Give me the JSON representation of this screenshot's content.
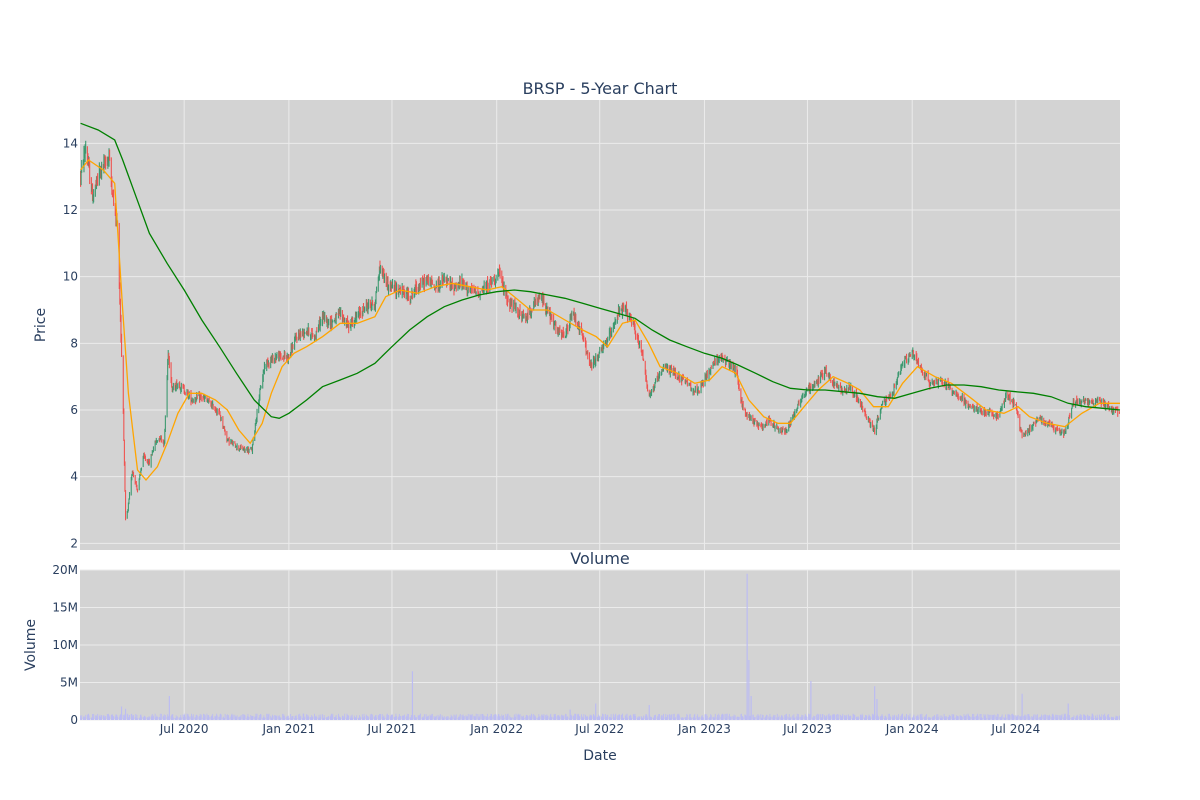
{
  "colors": {
    "plot_bg": "#d3d3d3",
    "grid": "#ebebeb",
    "increasing": "#3d9970",
    "decreasing": "#ef5350",
    "ma_short": "#ffa500",
    "ma_long": "#008000",
    "volume": "#bcbcf2",
    "text": "#2a3f5f"
  },
  "chart_data": [
    {
      "type": "candlestick",
      "title": "BRSP - 5-Year Chart",
      "xlabel": "",
      "ylabel": "Price",
      "x_range": [
        "2019-12-31",
        "2024-12-31"
      ],
      "ylim": [
        1.8,
        15.3
      ],
      "y_ticks": [
        2,
        4,
        6,
        8,
        10,
        12,
        14
      ],
      "grid": true,
      "legend": "none",
      "price_path": [
        [
          "2020-01-01",
          13.0
        ],
        [
          "2020-01-10",
          13.9
        ],
        [
          "2020-01-22",
          12.4
        ],
        [
          "2020-02-05",
          13.2
        ],
        [
          "2020-02-20",
          13.6
        ],
        [
          "2020-02-28",
          12.2
        ],
        [
          "2020-03-06",
          11.5
        ],
        [
          "2020-03-10",
          9.3
        ],
        [
          "2020-03-16",
          6.0
        ],
        [
          "2020-03-20",
          2.7
        ],
        [
          "2020-03-24",
          3.0
        ],
        [
          "2020-04-01",
          4.2
        ],
        [
          "2020-04-10",
          3.6
        ],
        [
          "2020-04-20",
          4.6
        ],
        [
          "2020-05-01",
          4.4
        ],
        [
          "2020-05-10",
          5.0
        ],
        [
          "2020-05-20",
          5.2
        ],
        [
          "2020-05-27",
          5.0
        ],
        [
          "2020-06-03",
          7.8
        ],
        [
          "2020-06-10",
          6.6
        ],
        [
          "2020-06-20",
          6.8
        ],
        [
          "2020-07-01",
          6.6
        ],
        [
          "2020-07-15",
          6.3
        ],
        [
          "2020-08-01",
          6.4
        ],
        [
          "2020-08-15",
          6.2
        ],
        [
          "2020-09-01",
          5.9
        ],
        [
          "2020-09-15",
          5.1
        ],
        [
          "2020-10-01",
          4.9
        ],
        [
          "2020-10-15",
          4.8
        ],
        [
          "2020-10-28",
          4.8
        ],
        [
          "2020-11-08",
          6.2
        ],
        [
          "2020-11-20",
          7.4
        ],
        [
          "2020-12-10",
          7.6
        ],
        [
          "2020-12-31",
          7.6
        ],
        [
          "2021-01-15",
          8.2
        ],
        [
          "2021-02-01",
          8.4
        ],
        [
          "2021-02-15",
          8.2
        ],
        [
          "2021-03-01",
          8.8
        ],
        [
          "2021-03-15",
          8.6
        ],
        [
          "2021-04-01",
          8.9
        ],
        [
          "2021-04-15",
          8.5
        ],
        [
          "2021-05-01",
          8.8
        ],
        [
          "2021-05-15",
          9.1
        ],
        [
          "2021-06-01",
          9.2
        ],
        [
          "2021-06-10",
          10.3
        ],
        [
          "2021-06-25",
          9.7
        ],
        [
          "2021-07-15",
          9.6
        ],
        [
          "2021-08-01",
          9.4
        ],
        [
          "2021-08-15",
          9.7
        ],
        [
          "2021-09-01",
          9.9
        ],
        [
          "2021-09-15",
          9.7
        ],
        [
          "2021-10-01",
          9.9
        ],
        [
          "2021-10-15",
          9.7
        ],
        [
          "2021-11-01",
          9.8
        ],
        [
          "2021-11-15",
          9.6
        ],
        [
          "2021-12-01",
          9.5
        ],
        [
          "2021-12-20",
          9.8
        ],
        [
          "2022-01-05",
          10.1
        ],
        [
          "2022-01-20",
          9.3
        ],
        [
          "2022-02-05",
          9.0
        ],
        [
          "2022-02-20",
          8.7
        ],
        [
          "2022-03-05",
          9.1
        ],
        [
          "2022-03-20",
          9.4
        ],
        [
          "2022-04-05",
          8.8
        ],
        [
          "2022-04-20",
          8.3
        ],
        [
          "2022-05-01",
          8.2
        ],
        [
          "2022-05-15",
          8.9
        ],
        [
          "2022-06-01",
          8.2
        ],
        [
          "2022-06-15",
          7.3
        ],
        [
          "2022-07-01",
          7.7
        ],
        [
          "2022-07-15",
          8.1
        ],
        [
          "2022-08-01",
          8.9
        ],
        [
          "2022-08-15",
          9.0
        ],
        [
          "2022-09-01",
          8.4
        ],
        [
          "2022-09-15",
          7.6
        ],
        [
          "2022-09-25",
          6.4
        ],
        [
          "2022-10-10",
          6.9
        ],
        [
          "2022-10-25",
          7.3
        ],
        [
          "2022-11-10",
          7.1
        ],
        [
          "2022-12-01",
          6.8
        ],
        [
          "2022-12-20",
          6.5
        ],
        [
          "2023-01-10",
          7.2
        ],
        [
          "2023-01-25",
          7.6
        ],
        [
          "2023-02-10",
          7.4
        ],
        [
          "2023-02-25",
          7.2
        ],
        [
          "2023-03-10",
          6.0
        ],
        [
          "2023-03-25",
          5.7
        ],
        [
          "2023-04-10",
          5.5
        ],
        [
          "2023-04-25",
          5.7
        ],
        [
          "2023-05-10",
          5.4
        ],
        [
          "2023-05-25",
          5.4
        ],
        [
          "2023-06-10",
          6.0
        ],
        [
          "2023-06-25",
          6.5
        ],
        [
          "2023-07-15",
          6.8
        ],
        [
          "2023-08-01",
          7.2
        ],
        [
          "2023-08-15",
          6.8
        ],
        [
          "2023-09-01",
          6.6
        ],
        [
          "2023-09-15",
          6.7
        ],
        [
          "2023-10-01",
          6.2
        ],
        [
          "2023-10-15",
          5.7
        ],
        [
          "2023-10-27",
          5.4
        ],
        [
          "2023-11-10",
          6.2
        ],
        [
          "2023-11-25",
          6.4
        ],
        [
          "2023-12-15",
          7.4
        ],
        [
          "2024-01-01",
          7.7
        ],
        [
          "2024-01-15",
          7.3
        ],
        [
          "2024-02-01",
          6.8
        ],
        [
          "2024-02-20",
          6.9
        ],
        [
          "2024-03-10",
          6.6
        ],
        [
          "2024-03-25",
          6.4
        ],
        [
          "2024-04-10",
          6.1
        ],
        [
          "2024-04-25",
          6.0
        ],
        [
          "2024-05-15",
          5.9
        ],
        [
          "2024-06-01",
          5.8
        ],
        [
          "2024-06-15",
          6.5
        ],
        [
          "2024-07-01",
          6.1
        ],
        [
          "2024-07-12",
          5.2
        ],
        [
          "2024-07-25",
          5.4
        ],
        [
          "2024-08-10",
          5.8
        ],
        [
          "2024-08-25",
          5.6
        ],
        [
          "2024-09-10",
          5.4
        ],
        [
          "2024-09-25",
          5.3
        ],
        [
          "2024-10-10",
          6.2
        ],
        [
          "2024-10-25",
          6.3
        ],
        [
          "2024-11-10",
          6.2
        ],
        [
          "2024-11-25",
          6.3
        ],
        [
          "2024-12-10",
          6.1
        ],
        [
          "2024-12-31",
          5.9
        ]
      ],
      "ma_short": [
        [
          "2020-01-01",
          13.2
        ],
        [
          "2020-01-15",
          13.5
        ],
        [
          "2020-02-10",
          13.2
        ],
        [
          "2020-03-01",
          12.8
        ],
        [
          "2020-03-15",
          9.0
        ],
        [
          "2020-03-25",
          6.5
        ],
        [
          "2020-04-10",
          4.2
        ],
        [
          "2020-04-25",
          3.9
        ],
        [
          "2020-05-15",
          4.3
        ],
        [
          "2020-06-01",
          5.0
        ],
        [
          "2020-06-20",
          5.9
        ],
        [
          "2020-07-10",
          6.5
        ],
        [
          "2020-08-01",
          6.5
        ],
        [
          "2020-08-25",
          6.3
        ],
        [
          "2020-09-15",
          6.0
        ],
        [
          "2020-10-05",
          5.4
        ],
        [
          "2020-10-25",
          5.0
        ],
        [
          "2020-11-15",
          5.6
        ],
        [
          "2020-12-01",
          6.5
        ],
        [
          "2020-12-20",
          7.3
        ],
        [
          "2021-01-10",
          7.7
        ],
        [
          "2021-02-01",
          7.9
        ],
        [
          "2021-03-01",
          8.2
        ],
        [
          "2021-04-01",
          8.6
        ],
        [
          "2021-05-01",
          8.6
        ],
        [
          "2021-06-01",
          8.8
        ],
        [
          "2021-06-20",
          9.4
        ],
        [
          "2021-07-15",
          9.6
        ],
        [
          "2021-08-15",
          9.5
        ],
        [
          "2021-09-15",
          9.7
        ],
        [
          "2021-10-15",
          9.8
        ],
        [
          "2021-11-15",
          9.7
        ],
        [
          "2021-12-15",
          9.6
        ],
        [
          "2022-01-10",
          9.7
        ],
        [
          "2022-02-01",
          9.4
        ],
        [
          "2022-03-01",
          9.0
        ],
        [
          "2022-04-01",
          9.0
        ],
        [
          "2022-05-01",
          8.7
        ],
        [
          "2022-06-01",
          8.4
        ],
        [
          "2022-06-25",
          8.2
        ],
        [
          "2022-07-15",
          7.9
        ],
        [
          "2022-08-10",
          8.6
        ],
        [
          "2022-09-01",
          8.7
        ],
        [
          "2022-09-25",
          8.0
        ],
        [
          "2022-10-15",
          7.3
        ],
        [
          "2022-11-15",
          7.1
        ],
        [
          "2022-12-15",
          6.8
        ],
        [
          "2023-01-10",
          6.9
        ],
        [
          "2023-02-01",
          7.3
        ],
        [
          "2023-02-25",
          7.1
        ],
        [
          "2023-03-20",
          6.3
        ],
        [
          "2023-04-15",
          5.8
        ],
        [
          "2023-05-10",
          5.6
        ],
        [
          "2023-06-01",
          5.6
        ],
        [
          "2023-06-25",
          6.1
        ],
        [
          "2023-07-20",
          6.6
        ],
        [
          "2023-08-15",
          7.0
        ],
        [
          "2023-09-10",
          6.8
        ],
        [
          "2023-10-01",
          6.6
        ],
        [
          "2023-10-25",
          6.1
        ],
        [
          "2023-11-20",
          6.1
        ],
        [
          "2023-12-15",
          6.8
        ],
        [
          "2024-01-10",
          7.3
        ],
        [
          "2024-02-10",
          7.0
        ],
        [
          "2024-03-10",
          6.8
        ],
        [
          "2024-04-10",
          6.4
        ],
        [
          "2024-05-10",
          6.0
        ],
        [
          "2024-06-10",
          5.9
        ],
        [
          "2024-07-05",
          6.1
        ],
        [
          "2024-07-25",
          5.8
        ],
        [
          "2024-08-25",
          5.6
        ],
        [
          "2024-09-25",
          5.5
        ],
        [
          "2024-10-25",
          5.9
        ],
        [
          "2024-11-25",
          6.2
        ],
        [
          "2024-12-31",
          6.2
        ]
      ],
      "ma_long": [
        [
          "2020-01-01",
          14.6
        ],
        [
          "2020-02-01",
          14.4
        ],
        [
          "2020-03-01",
          14.1
        ],
        [
          "2020-03-15",
          13.5
        ],
        [
          "2020-04-01",
          12.7
        ],
        [
          "2020-05-01",
          11.3
        ],
        [
          "2020-06-01",
          10.4
        ],
        [
          "2020-07-01",
          9.6
        ],
        [
          "2020-08-01",
          8.7
        ],
        [
          "2020-09-01",
          7.9
        ],
        [
          "2020-10-01",
          7.1
        ],
        [
          "2020-11-01",
          6.3
        ],
        [
          "2020-12-01",
          5.8
        ],
        [
          "2020-12-15",
          5.75
        ],
        [
          "2021-01-01",
          5.9
        ],
        [
          "2021-02-01",
          6.3
        ],
        [
          "2021-03-01",
          6.7
        ],
        [
          "2021-04-01",
          6.9
        ],
        [
          "2021-05-01",
          7.1
        ],
        [
          "2021-06-01",
          7.4
        ],
        [
          "2021-07-01",
          7.9
        ],
        [
          "2021-08-01",
          8.4
        ],
        [
          "2021-09-01",
          8.8
        ],
        [
          "2021-10-01",
          9.1
        ],
        [
          "2021-11-01",
          9.3
        ],
        [
          "2021-12-01",
          9.45
        ],
        [
          "2022-01-01",
          9.55
        ],
        [
          "2022-02-01",
          9.6
        ],
        [
          "2022-03-01",
          9.55
        ],
        [
          "2022-04-01",
          9.45
        ],
        [
          "2022-05-01",
          9.35
        ],
        [
          "2022-06-01",
          9.2
        ],
        [
          "2022-07-01",
          9.05
        ],
        [
          "2022-08-01",
          8.9
        ],
        [
          "2022-09-01",
          8.75
        ],
        [
          "2022-10-01",
          8.4
        ],
        [
          "2022-11-01",
          8.1
        ],
        [
          "2022-12-01",
          7.9
        ],
        [
          "2023-01-01",
          7.7
        ],
        [
          "2023-02-01",
          7.55
        ],
        [
          "2023-03-01",
          7.35
        ],
        [
          "2023-04-01",
          7.1
        ],
        [
          "2023-05-01",
          6.85
        ],
        [
          "2023-06-01",
          6.65
        ],
        [
          "2023-07-01",
          6.6
        ],
        [
          "2023-08-01",
          6.6
        ],
        [
          "2023-09-01",
          6.55
        ],
        [
          "2023-10-01",
          6.5
        ],
        [
          "2023-11-01",
          6.4
        ],
        [
          "2023-12-01",
          6.35
        ],
        [
          "2024-01-01",
          6.5
        ],
        [
          "2024-02-01",
          6.65
        ],
        [
          "2024-03-01",
          6.75
        ],
        [
          "2024-04-01",
          6.75
        ],
        [
          "2024-05-01",
          6.7
        ],
        [
          "2024-06-01",
          6.6
        ],
        [
          "2024-07-01",
          6.55
        ],
        [
          "2024-08-01",
          6.5
        ],
        [
          "2024-09-01",
          6.4
        ],
        [
          "2024-10-01",
          6.2
        ],
        [
          "2024-11-01",
          6.1
        ],
        [
          "2024-12-01",
          6.05
        ],
        [
          "2024-12-31",
          6.0
        ]
      ]
    },
    {
      "type": "bar",
      "title": "Volume",
      "xlabel": "Date",
      "ylabel": "Volume",
      "x_range": [
        "2019-12-31",
        "2024-12-31"
      ],
      "ylim": [
        0,
        20000000
      ],
      "y_ticks": [
        0,
        5000000,
        10000000,
        15000000,
        20000000
      ],
      "y_tick_labels": [
        "0",
        "5M",
        "10M",
        "15M",
        "20M"
      ],
      "x_ticks": [
        "2020-07-01",
        "2021-01-01",
        "2021-07-01",
        "2022-01-01",
        "2022-07-01",
        "2023-01-01",
        "2023-07-01",
        "2024-01-01",
        "2024-07-01"
      ],
      "x_tick_labels": [
        "Jul 2020",
        "Jan 2021",
        "Jul 2021",
        "Jan 2022",
        "Jul 2022",
        "Jan 2023",
        "Jul 2023",
        "Jan 2024",
        "Jul 2024"
      ],
      "baseline_volume": 500000,
      "notable_volumes": [
        [
          "2020-03-13",
          1800000
        ],
        [
          "2020-03-20",
          1500000
        ],
        [
          "2020-06-05",
          3200000
        ],
        [
          "2021-08-06",
          6500000
        ],
        [
          "2022-05-10",
          1400000
        ],
        [
          "2022-06-24",
          2200000
        ],
        [
          "2022-09-26",
          2000000
        ],
        [
          "2023-03-17",
          19500000
        ],
        [
          "2023-03-20",
          8000000
        ],
        [
          "2023-03-24",
          3200000
        ],
        [
          "2023-07-07",
          5200000
        ],
        [
          "2023-10-27",
          4500000
        ],
        [
          "2023-10-31",
          2800000
        ],
        [
          "2024-07-12",
          3500000
        ],
        [
          "2024-10-01",
          2200000
        ]
      ]
    }
  ]
}
